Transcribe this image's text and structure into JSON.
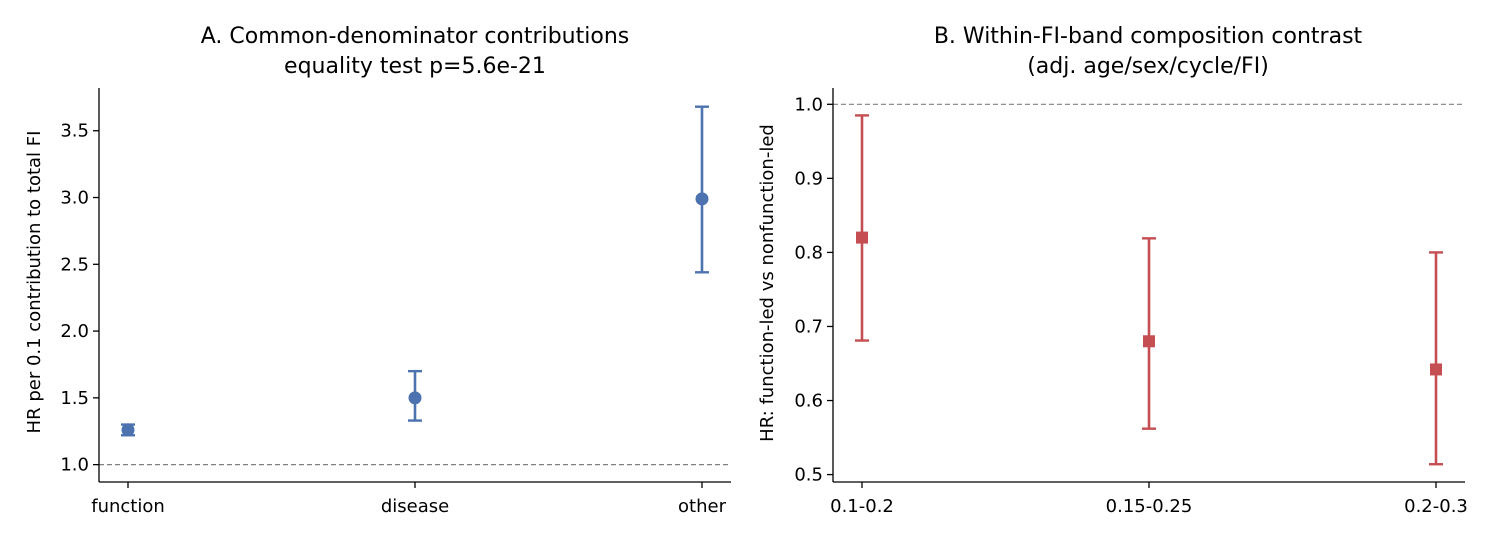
{
  "chart_data": [
    {
      "type": "scatter",
      "title": "A. Common-denominator contributions",
      "subtitle": "equality test p=5.6e-21",
      "xlabel": "",
      "ylabel": "HR per 0.1 contribution to total FI",
      "categories": [
        "function",
        "disease",
        "other"
      ],
      "estimates": [
        1.26,
        1.5,
        2.99
      ],
      "ci_low": [
        1.22,
        1.33,
        2.44
      ],
      "ci_high": [
        1.3,
        1.7,
        3.68
      ],
      "ylim": [
        0.87,
        3.82
      ],
      "yticks": [
        1.0,
        1.5,
        2.0,
        2.5,
        3.0,
        3.5
      ],
      "ytick_labels": [
        "1.0",
        "1.5",
        "2.0",
        "2.5",
        "3.0",
        "3.5"
      ],
      "reference_line": 1.0,
      "marker": "circle",
      "color": "#4c72b0",
      "grid": false
    },
    {
      "type": "scatter",
      "title": "B. Within-FI-band composition contrast",
      "subtitle": "(adj. age/sex/cycle/FI)",
      "xlabel": "",
      "ylabel": "HR: function-led vs nonfunction-led",
      "categories": [
        "0.1-0.2",
        "0.15-0.25",
        "0.2-0.3"
      ],
      "estimates": [
        0.82,
        0.68,
        0.642
      ],
      "ci_low": [
        0.681,
        0.562,
        0.514
      ],
      "ci_high": [
        0.985,
        0.819,
        0.8
      ],
      "ylim": [
        0.49,
        1.022
      ],
      "yticks": [
        0.5,
        0.6,
        0.7,
        0.8,
        0.9,
        1.0
      ],
      "ytick_labels": [
        "0.5",
        "0.6",
        "0.7",
        "0.8",
        "0.9",
        "1.0"
      ],
      "reference_line": 1.0,
      "marker": "square",
      "color": "#c44e52",
      "grid": false
    }
  ]
}
